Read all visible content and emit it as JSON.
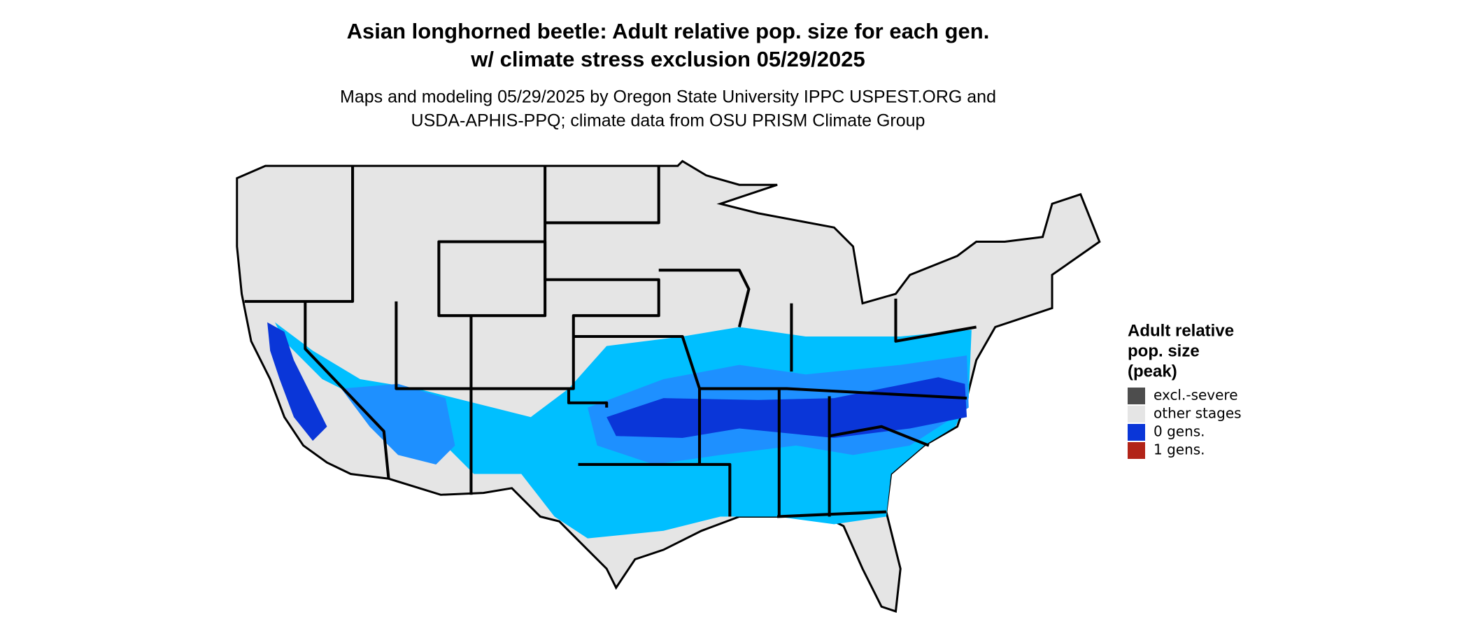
{
  "title_lines": [
    "Asian longhorned beetle: Adult relative pop. size for each gen.",
    "w/ climate stress exclusion 05/29/2025"
  ],
  "subtitle_lines": [
    "Maps and modeling 05/29/2025 by Oregon State University IPPC USPEST.ORG and",
    "USDA-APHIS-PPQ; climate data from OSU PRISM Climate Group"
  ],
  "legend": {
    "title_lines": [
      "Adult relative",
      "pop. size",
      "(peak)"
    ],
    "items": [
      {
        "label": "excl.-severe",
        "color": "#4d4d4d"
      },
      {
        "label": "other stages",
        "color": "#e5e5e5"
      },
      {
        "label": "0 gens.",
        "color": "#0a36d8"
      },
      {
        "label": "1 gens.",
        "color": "#b22418"
      }
    ]
  }
}
